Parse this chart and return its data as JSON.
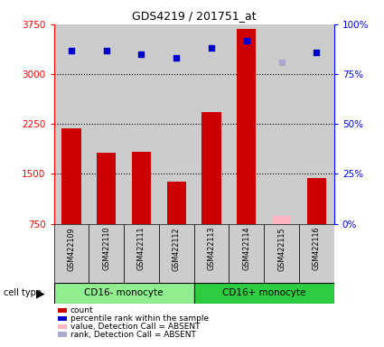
{
  "title": "GDS4219 / 201751_at",
  "samples": [
    "GSM422109",
    "GSM422110",
    "GSM422111",
    "GSM422112",
    "GSM422113",
    "GSM422114",
    "GSM422115",
    "GSM422116"
  ],
  "counts": [
    2180,
    1820,
    1830,
    1390,
    2430,
    3680,
    null,
    1440
  ],
  "counts_absent": [
    null,
    null,
    null,
    null,
    null,
    null,
    870,
    null
  ],
  "percentile_ranks": [
    87,
    87,
    85,
    83,
    88,
    92,
    null,
    86
  ],
  "percentile_ranks_absent": [
    null,
    null,
    null,
    null,
    null,
    null,
    81,
    null
  ],
  "ylim_left": [
    750,
    3750
  ],
  "ylim_right": [
    0,
    100
  ],
  "yticks_left": [
    750,
    1500,
    2250,
    3000,
    3750
  ],
  "yticks_right": [
    0,
    25,
    50,
    75,
    100
  ],
  "cell_types": [
    {
      "label": "CD16- monocyte",
      "start": 0,
      "end": 4,
      "color": "#90EE90"
    },
    {
      "label": "CD16+ monocyte",
      "start": 4,
      "end": 8,
      "color": "#2ECC40"
    }
  ],
  "bar_color": "#cc0000",
  "bar_absent_color": "#FFB6C1",
  "rank_color": "#0000cc",
  "rank_absent_color": "#aaaacc",
  "bar_width": 0.55,
  "bg_color": "#cccccc",
  "legend_items": [
    {
      "color": "#cc0000",
      "label": "count"
    },
    {
      "color": "#0000cc",
      "label": "percentile rank within the sample"
    },
    {
      "color": "#FFB6C1",
      "label": "value, Detection Call = ABSENT"
    },
    {
      "color": "#aaaacc",
      "label": "rank, Detection Call = ABSENT"
    }
  ]
}
